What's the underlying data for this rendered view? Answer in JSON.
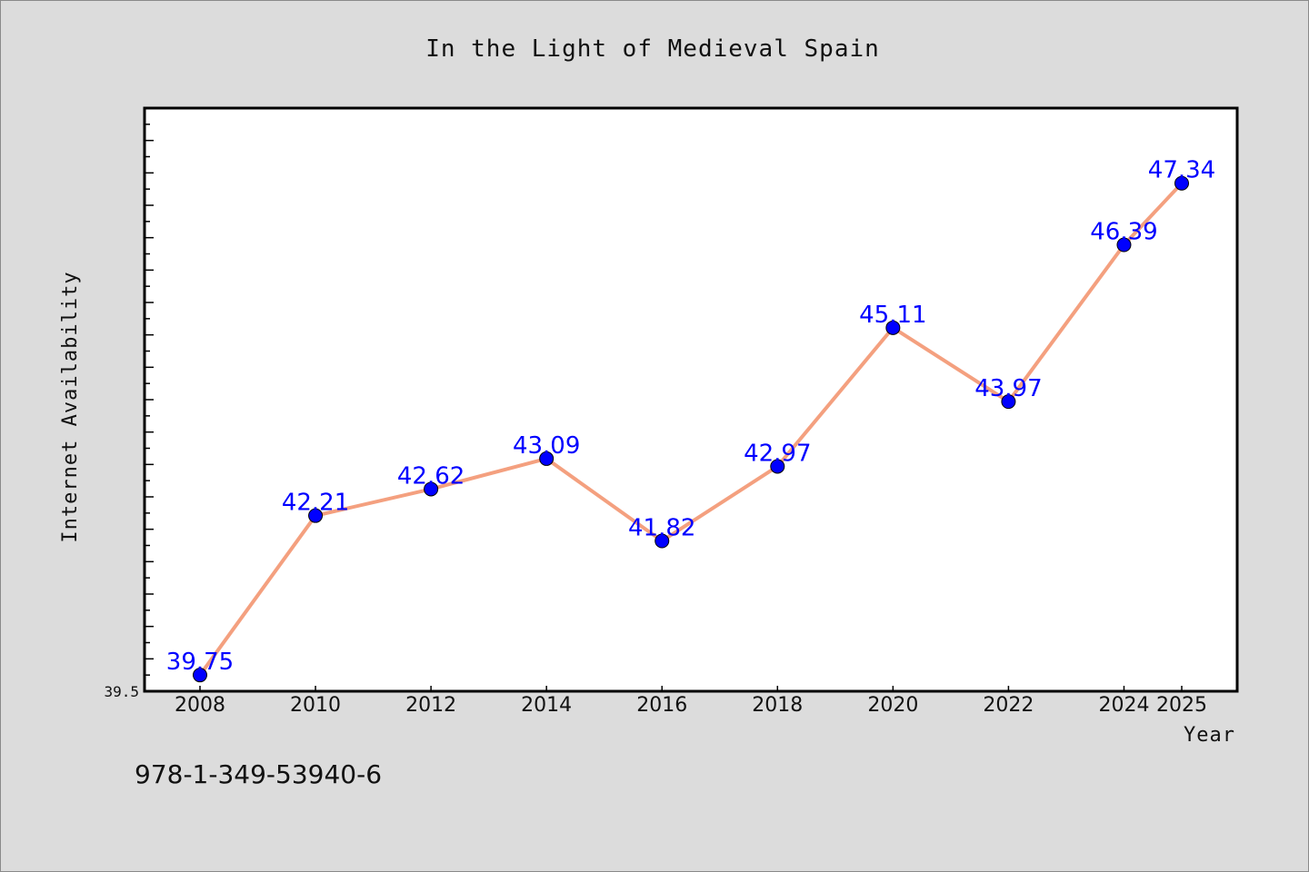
{
  "chart_data": {
    "type": "line",
    "title": "In the Light of Medieval Spain",
    "xlabel": "Year",
    "ylabel": "Internet Availability",
    "x": [
      "2008",
      "2010",
      "2012",
      "2014",
      "2016",
      "2018",
      "2020",
      "2022",
      "2024",
      "2025"
    ],
    "series": [
      {
        "values": [
          39.75,
          42.21,
          42.62,
          43.09,
          41.82,
          42.97,
          45.11,
          43.97,
          46.39,
          47.34
        ],
        "data_labels": [
          "39.75",
          "42.21",
          "42.62",
          "43.09",
          "41.82",
          "42.97",
          "45.11",
          "43.97",
          "46.39",
          "47.34"
        ],
        "line_color": "#f4a07f",
        "marker_color": "#0000ff"
      }
    ],
    "ylim": [
      39.5,
      48.5
    ],
    "yticks_labeled": [
      "39.5"
    ],
    "grid": false,
    "legend": "none"
  },
  "footer": {
    "isbn": "978-1-349-53940-6"
  }
}
